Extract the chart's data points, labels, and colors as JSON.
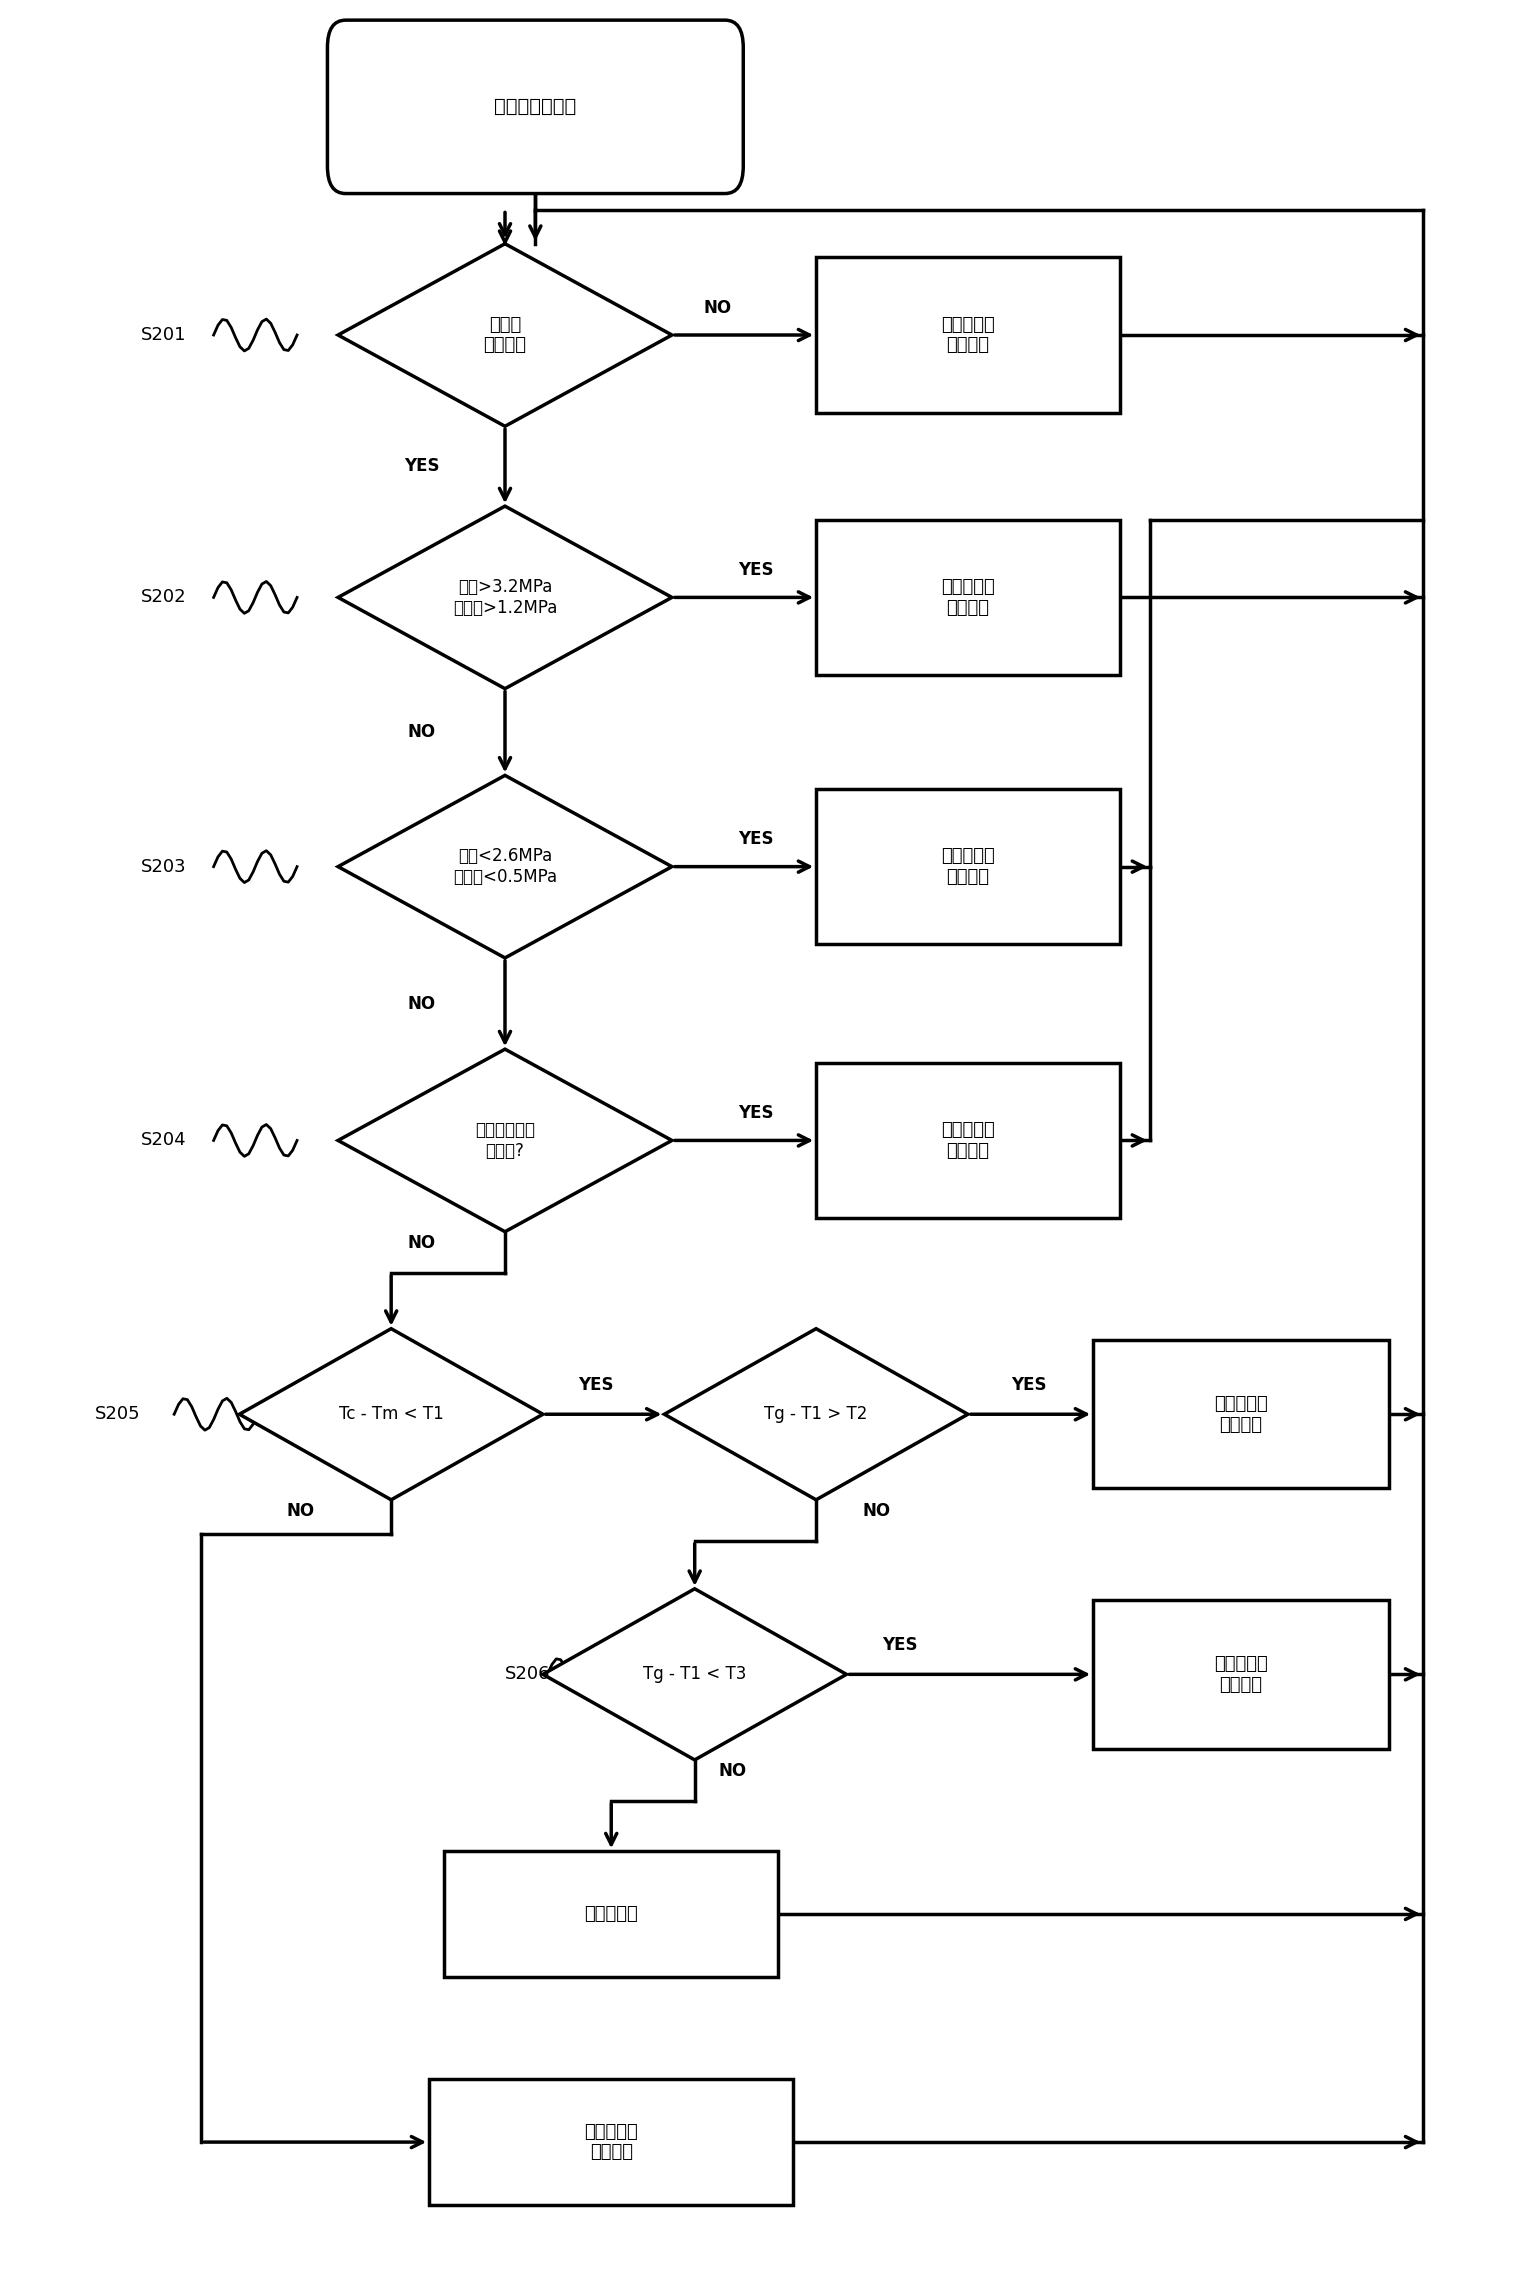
{
  "bg_color": "#ffffff",
  "line_color": "#000000",
  "nodes": {
    "start_text": "室内机制热关机",
    "d1_text": "室外机\n制热开机",
    "b1_text": "膨胀阀维持\n当前开度",
    "d2_text": "高压>3.2MPa\n且低压>1.2MPa",
    "b2_text": "膨胀阀进行\n关阀操作",
    "d3_text": "高压<2.6MPa\n且低压<0.5MPa",
    "b3_text": "膨胀阀进行\n开阀操作",
    "d4_text": "压缩机排气温\n度过高?",
    "b4_text": "膨胀阀进行\n开阀操作",
    "d5_text": "Tc - Tm < T1",
    "d6_text": "Tg - T1 > T2",
    "b5_text": "膨胀阀进行\n开阀操作",
    "d7_text": "Tg - T1 < T3",
    "b6_text": "膨胀阀进行\n关阀操作",
    "b7_text": "膨胀阀维持",
    "b8_text": "膨胀阀进行\n开阀操作"
  }
}
